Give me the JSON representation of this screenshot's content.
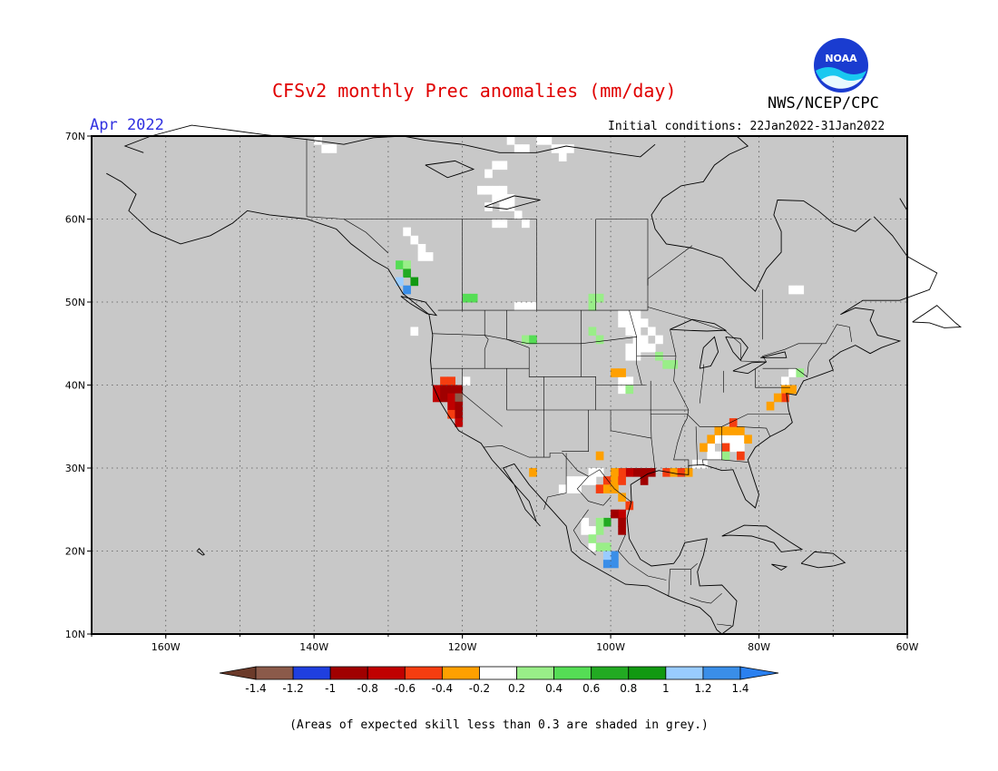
{
  "header": {
    "title": "CFSv2 monthly Prec anomalies (mm/day)",
    "organization": "NWS/NCEP/CPC",
    "valid_month": "Apr 2022",
    "initial_conditions": "Initial conditions: 22Jan2022-31Jan2022",
    "logo_text": "NOAA"
  },
  "map": {
    "projection": "lat-lon",
    "lon_range": [
      -170,
      -60
    ],
    "lat_range": [
      10,
      70
    ],
    "grid": true,
    "background_color": "#c8c8c8",
    "lon_labels": [
      "160W",
      "140W",
      "120W",
      "100W",
      "80W",
      "60W"
    ],
    "lat_labels": [
      "70N",
      "60N",
      "50N",
      "40N",
      "30N",
      "20N",
      "10N"
    ],
    "anomaly_cells": [
      {
        "lon": -122.5,
        "lat": 40.5,
        "bin": -0.5
      },
      {
        "lon": -121.5,
        "lat": 40.5,
        "bin": -0.5
      },
      {
        "lon": -123.5,
        "lat": 39.5,
        "bin": -0.7
      },
      {
        "lon": -122.5,
        "lat": 39.5,
        "bin": -0.9
      },
      {
        "lon": -121.5,
        "lat": 39.5,
        "bin": -0.9
      },
      {
        "lon": -120.5,
        "lat": 39.5,
        "bin": -0.9
      },
      {
        "lon": -123.5,
        "lat": 38.5,
        "bin": -0.7
      },
      {
        "lon": -122.5,
        "lat": 38.5,
        "bin": -0.9
      },
      {
        "lon": -121.5,
        "lat": 38.5,
        "bin": -0.7
      },
      {
        "lon": -120.5,
        "lat": 38.5,
        "bin": -1.3
      },
      {
        "lon": -121.5,
        "lat": 37.5,
        "bin": -0.7
      },
      {
        "lon": -120.5,
        "lat": 37.5,
        "bin": -0.9
      },
      {
        "lon": -121.5,
        "lat": 36.5,
        "bin": -0.5
      },
      {
        "lon": -120.5,
        "lat": 36.5,
        "bin": -0.9
      },
      {
        "lon": -120.5,
        "lat": 35.5,
        "bin": -0.7
      },
      {
        "lon": -128.5,
        "lat": 54.5,
        "bin": 0.5
      },
      {
        "lon": -127.5,
        "lat": 54.5,
        "bin": 0.3
      },
      {
        "lon": -127.5,
        "lat": 53.5,
        "bin": 0.7
      },
      {
        "lon": -126.5,
        "lat": 52.5,
        "bin": 0.9
      },
      {
        "lon": -128.5,
        "lat": 52.5,
        "bin": 1.1
      },
      {
        "lon": -127.5,
        "lat": 51.5,
        "bin": 1.3
      },
      {
        "lon": -119.5,
        "lat": 50.5,
        "bin": 0.5
      },
      {
        "lon": -118.5,
        "lat": 50.5,
        "bin": 0.5
      },
      {
        "lon": -102.5,
        "lat": 50.5,
        "bin": 0.3
      },
      {
        "lon": -101.5,
        "lat": 50.5,
        "bin": 0.3
      },
      {
        "lon": -102.5,
        "lat": 49.5,
        "bin": 0.3
      },
      {
        "lon": -102.5,
        "lat": 46.5,
        "bin": 0.3
      },
      {
        "lon": -101.5,
        "lat": 45.5,
        "bin": 0.3
      },
      {
        "lon": -99.5,
        "lat": 41.5,
        "bin": -0.3
      },
      {
        "lon": -98.5,
        "lat": 41.5,
        "bin": -0.3
      },
      {
        "lon": -93.5,
        "lat": 43.5,
        "bin": 0.3
      },
      {
        "lon": -75.5,
        "lat": 39.5,
        "bin": -0.3
      },
      {
        "lon": -76.5,
        "lat": 39.5,
        "bin": -0.3
      },
      {
        "lon": -76.5,
        "lat": 38.5,
        "bin": -0.5
      },
      {
        "lon": -77.5,
        "lat": 38.5,
        "bin": -0.3
      },
      {
        "lon": -78.5,
        "lat": 37.5,
        "bin": -0.3
      },
      {
        "lon": -85.5,
        "lat": 34.5,
        "bin": -0.3
      },
      {
        "lon": -84.5,
        "lat": 34.5,
        "bin": -0.3
      },
      {
        "lon": -83.5,
        "lat": 34.5,
        "bin": -0.3
      },
      {
        "lon": -82.5,
        "lat": 34.5,
        "bin": -0.3
      },
      {
        "lon": -86.5,
        "lat": 33.5,
        "bin": -0.3
      },
      {
        "lon": -81.5,
        "lat": 33.5,
        "bin": -0.3
      },
      {
        "lon": -87.5,
        "lat": 32.5,
        "bin": -0.3
      },
      {
        "lon": -84.5,
        "lat": 32.5,
        "bin": -0.5
      },
      {
        "lon": -83.5,
        "lat": 35.5,
        "bin": -0.5
      },
      {
        "lon": -82.5,
        "lat": 31.5,
        "bin": -0.5
      },
      {
        "lon": -84.5,
        "lat": 31.5,
        "bin": 0.3
      },
      {
        "lon": -92.5,
        "lat": 29.5,
        "bin": -0.5
      },
      {
        "lon": -91.5,
        "lat": 29.5,
        "bin": -0.3
      },
      {
        "lon": -90.5,
        "lat": 29.5,
        "bin": -0.5
      },
      {
        "lon": -89.5,
        "lat": 29.5,
        "bin": -0.3
      },
      {
        "lon": -96.5,
        "lat": 29.5,
        "bin": -0.9
      },
      {
        "lon": -95.5,
        "lat": 29.5,
        "bin": -0.9
      },
      {
        "lon": -94.5,
        "lat": 29.5,
        "bin": -0.9
      },
      {
        "lon": -95.5,
        "lat": 28.5,
        "bin": -0.9
      },
      {
        "lon": -97.5,
        "lat": 29.5,
        "bin": -0.7
      },
      {
        "lon": -98.5,
        "lat": 29.5,
        "bin": -0.5
      },
      {
        "lon": -99.5,
        "lat": 29.5,
        "bin": -0.3
      },
      {
        "lon": -100.5,
        "lat": 28.5,
        "bin": -0.5
      },
      {
        "lon": -99.5,
        "lat": 28.5,
        "bin": -0.3
      },
      {
        "lon": -98.5,
        "lat": 28.5,
        "bin": -0.5
      },
      {
        "lon": -101.5,
        "lat": 27.5,
        "bin": -0.5
      },
      {
        "lon": -100.5,
        "lat": 27.5,
        "bin": -0.3
      },
      {
        "lon": -99.5,
        "lat": 27.5,
        "bin": -0.3
      },
      {
        "lon": -98.5,
        "lat": 26.5,
        "bin": -0.3
      },
      {
        "lon": -97.5,
        "lat": 25.5,
        "bin": -0.5
      },
      {
        "lon": -98.5,
        "lat": 24.5,
        "bin": -0.7
      },
      {
        "lon": -99.5,
        "lat": 24.5,
        "bin": -0.9
      },
      {
        "lon": -98.5,
        "lat": 23.5,
        "bin": -0.9
      },
      {
        "lon": -98.5,
        "lat": 22.5,
        "bin": -0.9
      },
      {
        "lon": -100.5,
        "lat": 23.5,
        "bin": 0.7
      },
      {
        "lon": -101.5,
        "lat": 23.5,
        "bin": 0.3
      },
      {
        "lon": -101.5,
        "lat": 22.5,
        "bin": 0.3
      },
      {
        "lon": -102.5,
        "lat": 21.5,
        "bin": 0.3
      },
      {
        "lon": -100.5,
        "lat": 20.5,
        "bin": 0.3
      },
      {
        "lon": -101.5,
        "lat": 20.5,
        "bin": 0.3
      },
      {
        "lon": -99.5,
        "lat": 19.5,
        "bin": 1.3
      },
      {
        "lon": -100.5,
        "lat": 18.5,
        "bin": 1.3
      },
      {
        "lon": -99.5,
        "lat": 18.5,
        "bin": 1.3
      },
      {
        "lon": -100.5,
        "lat": 19.5,
        "bin": 1.1
      },
      {
        "lon": -101.5,
        "lat": 31.5,
        "bin": -0.3
      },
      {
        "lon": -110.5,
        "lat": 29.5,
        "bin": -0.3
      },
      {
        "lon": -111.5,
        "lat": 45.5,
        "bin": 0.3
      },
      {
        "lon": -110.5,
        "lat": 45.5,
        "bin": 0.5
      },
      {
        "lon": -92.5,
        "lat": 42.5,
        "bin": 0.3
      },
      {
        "lon": -91.5,
        "lat": 42.5,
        "bin": 0.3
      },
      {
        "lon": -97.5,
        "lat": 39.5,
        "bin": 0.3
      },
      {
        "lon": -74.5,
        "lat": 41.5,
        "bin": 0.3
      }
    ],
    "neutral_cells": [
      {
        "lon": -139.5,
        "lat": 69.5
      },
      {
        "lon": -138.5,
        "lat": 68.5
      },
      {
        "lon": -137.5,
        "lat": 68.5
      },
      {
        "lon": -113.5,
        "lat": 69.5
      },
      {
        "lon": -112.5,
        "lat": 68.5
      },
      {
        "lon": -111.5,
        "lat": 68.5
      },
      {
        "lon": -109.5,
        "lat": 69.5
      },
      {
        "lon": -108.5,
        "lat": 69.5
      },
      {
        "lon": -107.5,
        "lat": 68.5
      },
      {
        "lon": -106.5,
        "lat": 68.5
      },
      {
        "lon": -105.5,
        "lat": 68.5
      },
      {
        "lon": -106.5,
        "lat": 67.5
      },
      {
        "lon": -115.5,
        "lat": 66.5
      },
      {
        "lon": -114.5,
        "lat": 66.5
      },
      {
        "lon": -116.5,
        "lat": 65.5
      },
      {
        "lon": -117.5,
        "lat": 63.5
      },
      {
        "lon": -116.5,
        "lat": 63.5
      },
      {
        "lon": -115.5,
        "lat": 63.5
      },
      {
        "lon": -114.5,
        "lat": 63.5
      },
      {
        "lon": -115.5,
        "lat": 62.5
      },
      {
        "lon": -114.5,
        "lat": 62.5
      },
      {
        "lon": -113.5,
        "lat": 62.5
      },
      {
        "lon": -116.5,
        "lat": 61.5
      },
      {
        "lon": -114.5,
        "lat": 61.5
      },
      {
        "lon": -113.5,
        "lat": 61.5
      },
      {
        "lon": -112.5,
        "lat": 60.5
      },
      {
        "lon": -111.5,
        "lat": 59.5
      },
      {
        "lon": -115.5,
        "lat": 59.5
      },
      {
        "lon": -114.5,
        "lat": 59.5
      },
      {
        "lon": -127.5,
        "lat": 58.5
      },
      {
        "lon": -126.5,
        "lat": 57.5
      },
      {
        "lon": -125.5,
        "lat": 56.5
      },
      {
        "lon": -124.5,
        "lat": 55.5
      },
      {
        "lon": -125.5,
        "lat": 55.5
      },
      {
        "lon": -112.5,
        "lat": 49.5
      },
      {
        "lon": -111.5,
        "lat": 49.5
      },
      {
        "lon": -110.5,
        "lat": 49.5
      },
      {
        "lon": -98.5,
        "lat": 48.5
      },
      {
        "lon": -97.5,
        "lat": 48.5
      },
      {
        "lon": -96.5,
        "lat": 48.5
      },
      {
        "lon": -98.5,
        "lat": 47.5
      },
      {
        "lon": -97.5,
        "lat": 47.5
      },
      {
        "lon": -96.5,
        "lat": 47.5
      },
      {
        "lon": -95.5,
        "lat": 47.5
      },
      {
        "lon": -94.5,
        "lat": 46.5
      },
      {
        "lon": -96.5,
        "lat": 46.5
      },
      {
        "lon": -97.5,
        "lat": 46.5
      },
      {
        "lon": -96.5,
        "lat": 45.5
      },
      {
        "lon": -95.5,
        "lat": 45.5
      },
      {
        "lon": -97.5,
        "lat": 44.5
      },
      {
        "lon": -96.5,
        "lat": 44.5
      },
      {
        "lon": -95.5,
        "lat": 44.5
      },
      {
        "lon": -93.5,
        "lat": 45.5
      },
      {
        "lon": -94.5,
        "lat": 44.5
      },
      {
        "lon": -97.5,
        "lat": 43.5
      },
      {
        "lon": -96.5,
        "lat": 43.5
      },
      {
        "lon": -98.5,
        "lat": 40.5
      },
      {
        "lon": -97.5,
        "lat": 40.5
      },
      {
        "lon": -82.5,
        "lat": 33.5
      },
      {
        "lon": -83.5,
        "lat": 33.5
      },
      {
        "lon": -84.5,
        "lat": 33.5
      },
      {
        "lon": -85.5,
        "lat": 33.5
      },
      {
        "lon": -83.5,
        "lat": 32.5
      },
      {
        "lon": -82.5,
        "lat": 32.5
      },
      {
        "lon": -86.5,
        "lat": 32.5
      },
      {
        "lon": -85.5,
        "lat": 31.5
      },
      {
        "lon": -86.5,
        "lat": 31.5
      },
      {
        "lon": -88.5,
        "lat": 30.5
      },
      {
        "lon": -87.5,
        "lat": 30.5
      },
      {
        "lon": -105.5,
        "lat": 28.5
      },
      {
        "lon": -104.5,
        "lat": 28.5
      },
      {
        "lon": -103.5,
        "lat": 28.5
      },
      {
        "lon": -106.5,
        "lat": 27.5
      },
      {
        "lon": -105.5,
        "lat": 27.5
      },
      {
        "lon": -104.5,
        "lat": 27.5
      },
      {
        "lon": -102.5,
        "lat": 29.5
      },
      {
        "lon": -101.5,
        "lat": 29.5
      },
      {
        "lon": -102.5,
        "lat": 28.5
      },
      {
        "lon": -103.5,
        "lat": 22.5
      },
      {
        "lon": -102.5,
        "lat": 22.5
      },
      {
        "lon": -103.5,
        "lat": 23.5
      },
      {
        "lon": -102.5,
        "lat": 20.5
      },
      {
        "lon": -76.5,
        "lat": 40.5
      },
      {
        "lon": -75.5,
        "lat": 41.5
      },
      {
        "lon": -74.5,
        "lat": 51.5
      },
      {
        "lon": -75.5,
        "lat": 51.5
      },
      {
        "lon": -126.5,
        "lat": 46.5
      },
      {
        "lon": -119.5,
        "lat": 40.5
      },
      {
        "lon": -98.5,
        "lat": 39.5
      }
    ]
  },
  "colorbar": {
    "bins": [
      {
        "color": "#8b5a4a"
      },
      {
        "color": "#1f3fdf"
      },
      {
        "color": "#a00000"
      },
      {
        "color": "#c00000"
      },
      {
        "color": "#f53d10"
      },
      {
        "color": "#ffa000"
      },
      {
        "color": "#ffffff"
      },
      {
        "color": "#99ee88"
      },
      {
        "color": "#55dd55"
      },
      {
        "color": "#22aa22"
      },
      {
        "color": "#119911"
      },
      {
        "color": "#99ccff"
      },
      {
        "color": "#3a8ee8"
      }
    ],
    "left_arrow_color": "#6b3a2a",
    "right_arrow_color": "#2a80f0",
    "labels": [
      "-1.4",
      "-1.2",
      "-1",
      "-0.8",
      "-0.6",
      "-0.4",
      "-0.2",
      "0.2",
      "0.4",
      "0.6",
      "0.8",
      "1",
      "1.2",
      "1.4"
    ]
  },
  "footnote": "(Areas of expected skill less than 0.3 are shaded in grey.)"
}
